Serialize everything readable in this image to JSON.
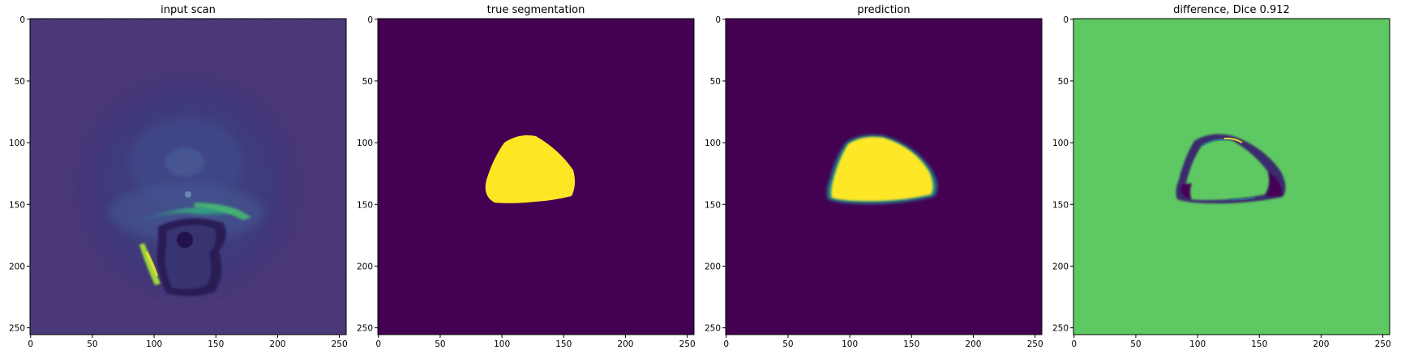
{
  "panels": [
    {
      "title": "input scan",
      "x_ticks": [
        "0",
        "50",
        "100",
        "150",
        "200",
        "250"
      ],
      "y_ticks": [
        "0",
        "50",
        "100",
        "150",
        "200",
        "250"
      ]
    },
    {
      "title": "true segmentation",
      "x_ticks": [
        "0",
        "50",
        "100",
        "150",
        "200",
        "250"
      ],
      "y_ticks": [
        "0",
        "50",
        "100",
        "150",
        "200",
        "250"
      ]
    },
    {
      "title": "prediction",
      "x_ticks": [
        "0",
        "50",
        "100",
        "150",
        "200",
        "250"
      ],
      "y_ticks": [
        "0",
        "50",
        "100",
        "150",
        "200",
        "250"
      ]
    },
    {
      "title": "difference, Dice 0.912",
      "x_ticks": [
        "0",
        "50",
        "100",
        "150",
        "200",
        "250"
      ],
      "y_ticks": [
        "0",
        "50",
        "100",
        "150",
        "200",
        "250"
      ]
    }
  ],
  "image_extent": [
    0,
    256
  ],
  "tick_values": [
    0,
    50,
    100,
    150,
    200,
    250
  ],
  "colors": {
    "viridis_low": "#440154",
    "viridis_mid": "#5ec962",
    "viridis_high": "#fde725",
    "scan_background": "#3b2a6e"
  }
}
